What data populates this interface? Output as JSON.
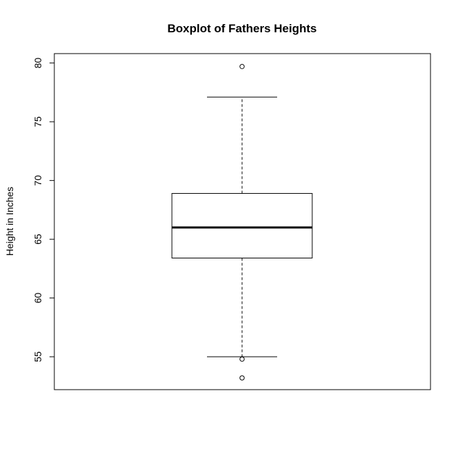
{
  "chart_data": {
    "type": "boxplot",
    "title": "Boxplot of Fathers Heights",
    "xlabel": "",
    "ylabel": "Height in Inches",
    "ylim": [
      52.2,
      80.8
    ],
    "yticks": [
      "55",
      "60",
      "65",
      "70",
      "75",
      "80"
    ],
    "grid": false,
    "box": {
      "whisker_low": 55.0,
      "q1": 63.4,
      "median": 66.0,
      "q3": 68.9,
      "whisker_high": 77.1,
      "outliers": [
        79.7,
        54.8,
        53.2
      ]
    }
  }
}
